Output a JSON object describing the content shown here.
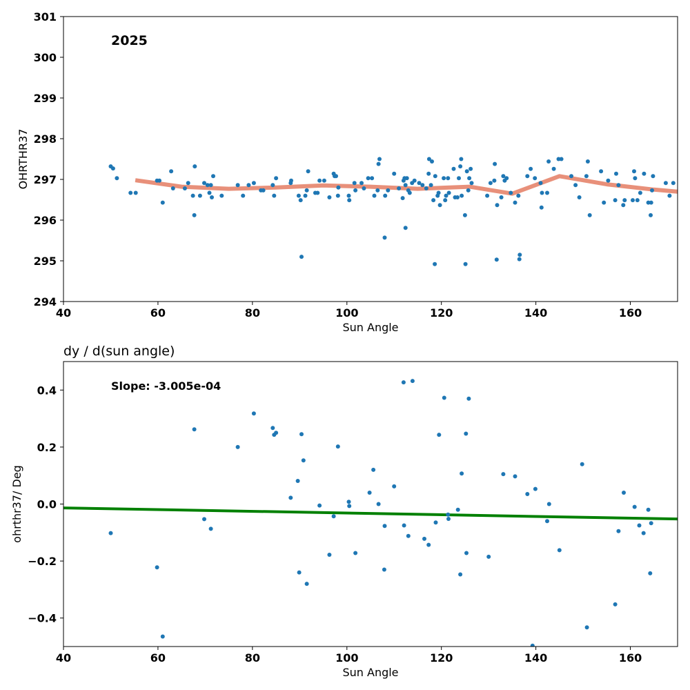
{
  "chart_data": [
    {
      "type": "scatter",
      "annotation": "2025",
      "xlabel": "Sun Angle",
      "ylabel": "OHRTHR37",
      "xlim": [
        40,
        170
      ],
      "ylim": [
        294,
        301
      ],
      "xticks": [
        "40",
        "60",
        "80",
        "100",
        "120",
        "140",
        "160"
      ],
      "yticks": [
        "294",
        "295",
        "296",
        "297",
        "298",
        "299",
        "300",
        "301"
      ],
      "grid": false,
      "colors": {
        "points": "#1f77b4",
        "trend": "#e8907a"
      },
      "points": [
        [
          50.0,
          297.32
        ],
        [
          50.5,
          297.27
        ],
        [
          51.3,
          297.03
        ],
        [
          54.2,
          296.67
        ],
        [
          55.3,
          296.67
        ],
        [
          59.8,
          296.97
        ],
        [
          60.3,
          296.97
        ],
        [
          61.0,
          296.43
        ],
        [
          62.8,
          297.2
        ],
        [
          63.2,
          296.78
        ],
        [
          65.7,
          296.78
        ],
        [
          66.4,
          296.91
        ],
        [
          67.4,
          296.6
        ],
        [
          67.7,
          296.12
        ],
        [
          67.8,
          297.32
        ],
        [
          68.9,
          296.6
        ],
        [
          69.8,
          296.91
        ],
        [
          70.5,
          296.86
        ],
        [
          70.9,
          296.67
        ],
        [
          71.2,
          296.86
        ],
        [
          71.4,
          296.56
        ],
        [
          71.7,
          297.08
        ],
        [
          73.5,
          296.6
        ],
        [
          76.9,
          296.86
        ],
        [
          78.0,
          296.6
        ],
        [
          79.2,
          296.86
        ],
        [
          80.3,
          296.91
        ],
        [
          81.8,
          296.73
        ],
        [
          82.3,
          296.73
        ],
        [
          84.3,
          296.86
        ],
        [
          84.6,
          296.6
        ],
        [
          85.0,
          297.03
        ],
        [
          88.1,
          296.91
        ],
        [
          88.2,
          296.97
        ],
        [
          89.8,
          296.6
        ],
        [
          90.2,
          296.49
        ],
        [
          90.4,
          295.1
        ],
        [
          91.2,
          296.6
        ],
        [
          91.5,
          296.73
        ],
        [
          91.8,
          297.2
        ],
        [
          93.3,
          296.67
        ],
        [
          93.8,
          296.67
        ],
        [
          94.2,
          296.97
        ],
        [
          95.2,
          296.97
        ],
        [
          96.3,
          296.56
        ],
        [
          97.2,
          297.14
        ],
        [
          97.4,
          297.08
        ],
        [
          97.7,
          297.08
        ],
        [
          98.1,
          296.6
        ],
        [
          98.2,
          296.8
        ],
        [
          100.4,
          296.6
        ],
        [
          100.5,
          296.49
        ],
        [
          101.6,
          296.91
        ],
        [
          101.8,
          296.73
        ],
        [
          103.1,
          296.91
        ],
        [
          103.6,
          296.78
        ],
        [
          104.5,
          297.03
        ],
        [
          105.3,
          297.03
        ],
        [
          105.8,
          296.6
        ],
        [
          106.5,
          296.73
        ],
        [
          106.7,
          297.38
        ],
        [
          106.9,
          297.5
        ],
        [
          108.0,
          295.57
        ],
        [
          108.1,
          296.6
        ],
        [
          108.7,
          296.73
        ],
        [
          110.0,
          297.14
        ],
        [
          111.0,
          296.78
        ],
        [
          111.8,
          296.54
        ],
        [
          112.0,
          296.97
        ],
        [
          112.2,
          297.03
        ],
        [
          112.4,
          296.86
        ],
        [
          112.4,
          295.81
        ],
        [
          112.7,
          297.03
        ],
        [
          113.0,
          296.73
        ],
        [
          113.3,
          296.67
        ],
        [
          113.8,
          296.91
        ],
        [
          114.3,
          296.97
        ],
        [
          115.3,
          296.91
        ],
        [
          116.0,
          296.86
        ],
        [
          116.8,
          296.78
        ],
        [
          117.3,
          297.14
        ],
        [
          117.4,
          297.5
        ],
        [
          117.8,
          296.86
        ],
        [
          118.0,
          297.44
        ],
        [
          118.3,
          296.49
        ],
        [
          118.6,
          294.92
        ],
        [
          118.7,
          297.08
        ],
        [
          119.2,
          296.6
        ],
        [
          119.4,
          296.67
        ],
        [
          119.7,
          296.37
        ],
        [
          120.5,
          297.03
        ],
        [
          120.8,
          296.49
        ],
        [
          121.0,
          296.6
        ],
        [
          121.4,
          297.03
        ],
        [
          121.6,
          296.67
        ],
        [
          122.6,
          297.26
        ],
        [
          122.9,
          296.56
        ],
        [
          123.4,
          296.56
        ],
        [
          123.7,
          297.03
        ],
        [
          124.0,
          297.32
        ],
        [
          124.2,
          297.5
        ],
        [
          124.3,
          296.6
        ],
        [
          125.0,
          296.12
        ],
        [
          125.1,
          294.92
        ],
        [
          125.4,
          297.2
        ],
        [
          125.7,
          296.73
        ],
        [
          125.9,
          297.03
        ],
        [
          126.2,
          297.26
        ],
        [
          126.4,
          296.91
        ],
        [
          129.7,
          296.6
        ],
        [
          130.4,
          296.91
        ],
        [
          131.2,
          296.97
        ],
        [
          131.3,
          297.38
        ],
        [
          131.7,
          295.03
        ],
        [
          131.8,
          296.37
        ],
        [
          132.7,
          296.56
        ],
        [
          133.1,
          297.08
        ],
        [
          133.4,
          296.97
        ],
        [
          133.8,
          297.03
        ],
        [
          134.7,
          296.67
        ],
        [
          135.6,
          296.43
        ],
        [
          136.3,
          296.6
        ],
        [
          136.5,
          295.04
        ],
        [
          136.6,
          295.15
        ],
        [
          138.2,
          297.08
        ],
        [
          138.9,
          297.26
        ],
        [
          139.8,
          297.03
        ],
        [
          141.0,
          296.91
        ],
        [
          141.2,
          296.31
        ],
        [
          141.3,
          296.67
        ],
        [
          142.4,
          296.67
        ],
        [
          142.7,
          297.44
        ],
        [
          143.8,
          297.26
        ],
        [
          144.8,
          297.5
        ],
        [
          145.4,
          297.5
        ],
        [
          147.5,
          297.08
        ],
        [
          148.4,
          296.86
        ],
        [
          149.2,
          296.56
        ],
        [
          150.7,
          297.08
        ],
        [
          151.0,
          297.44
        ],
        [
          151.4,
          296.12
        ],
        [
          153.8,
          297.2
        ],
        [
          154.4,
          296.43
        ],
        [
          155.3,
          296.97
        ],
        [
          156.8,
          296.49
        ],
        [
          157.0,
          297.14
        ],
        [
          157.5,
          296.86
        ],
        [
          158.5,
          296.37
        ],
        [
          158.8,
          296.49
        ],
        [
          160.5,
          296.49
        ],
        [
          160.8,
          297.2
        ],
        [
          161.0,
          297.03
        ],
        [
          161.5,
          296.49
        ],
        [
          162.1,
          296.67
        ],
        [
          162.9,
          297.14
        ],
        [
          163.8,
          296.43
        ],
        [
          164.3,
          296.12
        ],
        [
          164.4,
          296.43
        ],
        [
          164.6,
          296.73
        ],
        [
          164.8,
          297.08
        ],
        [
          167.5,
          296.91
        ],
        [
          168.3,
          296.6
        ],
        [
          169.1,
          296.91
        ]
      ],
      "trend": [
        [
          55.2,
          296.98
        ],
        [
          65.0,
          296.82
        ],
        [
          75.0,
          296.77
        ],
        [
          85.0,
          296.8
        ],
        [
          95.0,
          296.85
        ],
        [
          105.0,
          296.82
        ],
        [
          115.0,
          296.77
        ],
        [
          126.0,
          296.82
        ],
        [
          135.0,
          296.65
        ],
        [
          145.0,
          297.08
        ],
        [
          155.0,
          296.88
        ],
        [
          165.0,
          296.75
        ],
        [
          170.0,
          296.7
        ]
      ]
    },
    {
      "type": "scatter",
      "title": "dy / d(sun angle)",
      "annotation": "Slope: -3.005e-04",
      "xlabel": "Sun Angle",
      "ylabel": "ohrthr37/ Deg",
      "xlim": [
        40,
        170
      ],
      "ylim": [
        -0.5,
        0.5
      ],
      "xticks": [
        "40",
        "60",
        "80",
        "100",
        "120",
        "140",
        "160"
      ],
      "yticks": [
        "−0.4",
        "−0.2",
        "0.0",
        "0.2",
        "0.4"
      ],
      "grid": false,
      "colors": {
        "points": "#1f77b4",
        "fit": "#008000"
      },
      "fit": {
        "slope": -0.0003005,
        "x": [
          40,
          170
        ],
        "y": [
          -0.0135,
          -0.0525
        ]
      },
      "points": [
        [
          50.0,
          -0.102
        ],
        [
          59.8,
          -0.222
        ],
        [
          61.0,
          -0.465
        ],
        [
          67.7,
          0.262
        ],
        [
          69.8,
          -0.053
        ],
        [
          71.2,
          -0.087
        ],
        [
          76.9,
          0.2
        ],
        [
          80.3,
          0.318
        ],
        [
          84.3,
          0.267
        ],
        [
          84.6,
          0.243
        ],
        [
          85.0,
          0.25
        ],
        [
          88.1,
          0.022
        ],
        [
          89.6,
          0.081
        ],
        [
          89.9,
          -0.24
        ],
        [
          90.4,
          0.245
        ],
        [
          90.8,
          0.153
        ],
        [
          91.5,
          -0.28
        ],
        [
          94.2,
          -0.005
        ],
        [
          96.3,
          -0.178
        ],
        [
          97.2,
          -0.043
        ],
        [
          98.1,
          0.202
        ],
        [
          100.4,
          0.008
        ],
        [
          100.5,
          -0.007
        ],
        [
          101.8,
          -0.172
        ],
        [
          104.8,
          0.04
        ],
        [
          105.6,
          0.12
        ],
        [
          106.7,
          0.0
        ],
        [
          107.9,
          -0.23
        ],
        [
          108.0,
          -0.077
        ],
        [
          110.0,
          0.062
        ],
        [
          112.0,
          0.427
        ],
        [
          112.1,
          -0.075
        ],
        [
          113.0,
          -0.112
        ],
        [
          113.9,
          0.432
        ],
        [
          116.4,
          -0.122
        ],
        [
          117.3,
          -0.143
        ],
        [
          118.8,
          -0.065
        ],
        [
          119.5,
          0.243
        ],
        [
          120.6,
          0.373
        ],
        [
          121.4,
          -0.037
        ],
        [
          121.5,
          -0.052
        ],
        [
          123.5,
          -0.02
        ],
        [
          124.0,
          -0.247
        ],
        [
          124.3,
          0.107
        ],
        [
          125.2,
          0.247
        ],
        [
          125.3,
          -0.172
        ],
        [
          125.8,
          0.37
        ],
        [
          130.0,
          -0.185
        ],
        [
          133.1,
          0.105
        ],
        [
          135.6,
          0.097
        ],
        [
          138.2,
          0.035
        ],
        [
          139.3,
          -0.497
        ],
        [
          139.9,
          0.053
        ],
        [
          142.4,
          -0.06
        ],
        [
          142.8,
          0.0
        ],
        [
          145.0,
          -0.162
        ],
        [
          149.8,
          0.14
        ],
        [
          150.8,
          -0.433
        ],
        [
          156.8,
          -0.352
        ],
        [
          157.5,
          -0.095
        ],
        [
          158.6,
          0.04
        ],
        [
          160.9,
          -0.01
        ],
        [
          161.9,
          -0.075
        ],
        [
          162.8,
          -0.102
        ],
        [
          163.8,
          -0.02
        ],
        [
          164.2,
          -0.243
        ],
        [
          164.4,
          -0.067
        ]
      ]
    }
  ]
}
